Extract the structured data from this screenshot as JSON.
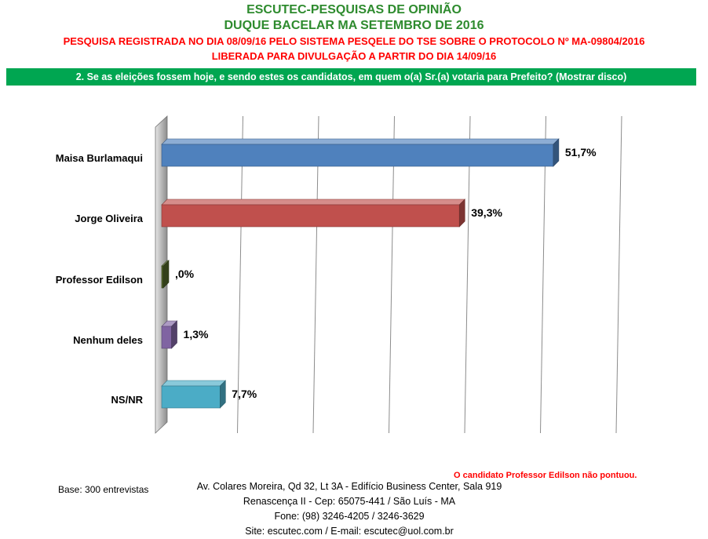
{
  "header": {
    "line1": "ESCUTEC-PESQUISAS DE OPINIÃO",
    "line2": "DUQUE BACELAR MA SETEMBRO DE 2016",
    "line3": "PESQUISA REGISTRADA NO DIA 08/09/16 PELO SISTEMA PESQELE DO TSE SOBRE O PROTOCOLO Nº MA-09804/2016",
    "line4": "LIBERADA PARA DIVULGAÇÃO A PARTIR DO DIA 14/09/16"
  },
  "question": "2. Se as eleições fossem hoje, e sendo estes os candidatos, em quem o(a) Sr.(a) votaria para Prefeito? (Mostrar disco)",
  "chart_data": {
    "type": "bar",
    "orientation": "horizontal",
    "categories": [
      "Maisa Burlamaqui",
      "Jorge Oliveira",
      "Professor Edilson",
      "Nenhum deles",
      "NS/NR"
    ],
    "values": [
      51.7,
      39.3,
      0.0,
      1.3,
      7.7
    ],
    "value_labels": [
      "51,7%",
      "39,3%",
      ",0%",
      "1,3%",
      "7,7%"
    ],
    "colors": [
      "#4f81bd",
      "#c0504d",
      "#4f6228",
      "#8064a2",
      "#4bacc6"
    ],
    "xlim": [
      0,
      60
    ],
    "gridlines": "vertical",
    "legend": "none",
    "title": "",
    "xlabel": "",
    "ylabel": ""
  },
  "footer": {
    "base": "Base: 300 entrevistas",
    "note": "O candidato Professor Edilson não pontuou.",
    "address1": "Av. Colares Moreira, Qd 32, Lt 3A - Edifício Business Center, Sala 919",
    "address2": "Renascença II - Cep: 65075-441 / São Luís - MA",
    "phone": "Fone: (98) 3246-4205 / 3246-3629",
    "site": "Site: escutec.com / E-mail: escutec@uol.com.br"
  }
}
